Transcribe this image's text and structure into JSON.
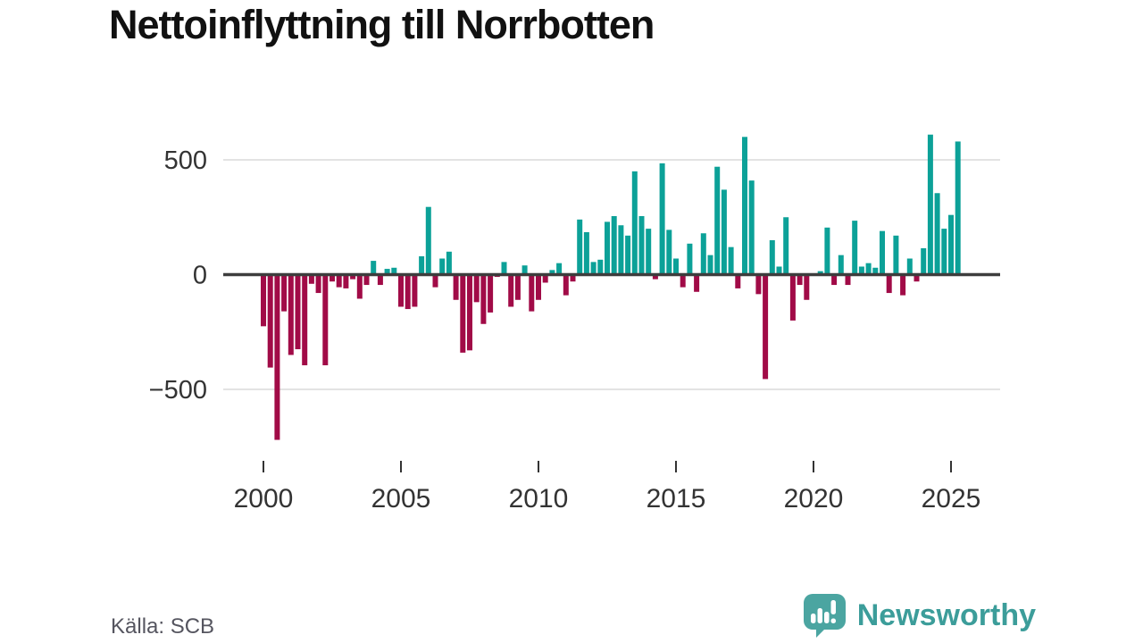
{
  "title": "Nettoinflyttning till Norrbotten",
  "source": "Källa: SCB",
  "brand": {
    "name": "Newsworthy",
    "icon": "bar-chart-speech-bubble-icon",
    "text_color": "#3c9d9a",
    "icon_color": "#4ba5a1"
  },
  "colors": {
    "positive": "#0ca198",
    "negative": "#a10b47",
    "zero_axis": "#3d3d3d",
    "gridline": "#e3e3e3",
    "tick_label": "#333333",
    "title": "#111111"
  },
  "chart_data": {
    "type": "bar",
    "title": "Nettoinflyttning till Norrbotten",
    "x_unit": "quarter",
    "start": "2000-Q1",
    "end": "2025-Q2",
    "grid": "horizontal",
    "legend": "none",
    "ylim": [
      -750,
      650
    ],
    "yticks": [
      500,
      0,
      -500
    ],
    "ytick_labels": [
      "500",
      "0",
      "−500"
    ],
    "xticks": [
      2000,
      2005,
      2010,
      2015,
      2020,
      2025
    ],
    "xtick_labels": [
      "2000",
      "2005",
      "2010",
      "2015",
      "2020",
      "2025"
    ],
    "categories": [
      "2000-Q1",
      "2000-Q2",
      "2000-Q3",
      "2000-Q4",
      "2001-Q1",
      "2001-Q2",
      "2001-Q3",
      "2001-Q4",
      "2002-Q1",
      "2002-Q2",
      "2002-Q3",
      "2002-Q4",
      "2003-Q1",
      "2003-Q2",
      "2003-Q3",
      "2003-Q4",
      "2004-Q1",
      "2004-Q2",
      "2004-Q3",
      "2004-Q4",
      "2005-Q1",
      "2005-Q2",
      "2005-Q3",
      "2005-Q4",
      "2006-Q1",
      "2006-Q2",
      "2006-Q3",
      "2006-Q4",
      "2007-Q1",
      "2007-Q2",
      "2007-Q3",
      "2007-Q4",
      "2008-Q1",
      "2008-Q2",
      "2008-Q3",
      "2008-Q4",
      "2009-Q1",
      "2009-Q2",
      "2009-Q3",
      "2009-Q4",
      "2010-Q1",
      "2010-Q2",
      "2010-Q3",
      "2010-Q4",
      "2011-Q1",
      "2011-Q2",
      "2011-Q3",
      "2011-Q4",
      "2012-Q1",
      "2012-Q2",
      "2012-Q3",
      "2012-Q4",
      "2013-Q1",
      "2013-Q2",
      "2013-Q3",
      "2013-Q4",
      "2014-Q1",
      "2014-Q2",
      "2014-Q3",
      "2014-Q4",
      "2015-Q1",
      "2015-Q2",
      "2015-Q3",
      "2015-Q4",
      "2016-Q1",
      "2016-Q2",
      "2016-Q3",
      "2016-Q4",
      "2017-Q1",
      "2017-Q2",
      "2017-Q3",
      "2017-Q4",
      "2018-Q1",
      "2018-Q2",
      "2018-Q3",
      "2018-Q4",
      "2019-Q1",
      "2019-Q2",
      "2019-Q3",
      "2019-Q4",
      "2020-Q1",
      "2020-Q2",
      "2020-Q3",
      "2020-Q4",
      "2021-Q1",
      "2021-Q2",
      "2021-Q3",
      "2021-Q4",
      "2022-Q1",
      "2022-Q2",
      "2022-Q3",
      "2022-Q4",
      "2023-Q1",
      "2023-Q2",
      "2023-Q3",
      "2023-Q4",
      "2024-Q1",
      "2024-Q2",
      "2024-Q3",
      "2024-Q4",
      "2025-Q1",
      "2025-Q2"
    ],
    "values": [
      -225,
      -405,
      -720,
      -160,
      -350,
      -325,
      -395,
      -40,
      -80,
      -395,
      -30,
      -55,
      -60,
      -20,
      -105,
      -45,
      60,
      -45,
      25,
      30,
      -140,
      -150,
      -140,
      80,
      295,
      -55,
      70,
      100,
      -110,
      -340,
      -330,
      -120,
      -215,
      -165,
      -10,
      55,
      -140,
      -110,
      40,
      -160,
      -110,
      -35,
      20,
      50,
      -90,
      -30,
      240,
      185,
      55,
      65,
      230,
      255,
      215,
      170,
      450,
      255,
      200,
      -20,
      485,
      195,
      70,
      -55,
      135,
      -75,
      180,
      85,
      470,
      370,
      120,
      -60,
      600,
      410,
      -85,
      -455,
      150,
      35,
      250,
      -200,
      -45,
      -110,
      0,
      15,
      205,
      -45,
      85,
      -45,
      235,
      35,
      50,
      30,
      190,
      -80,
      170,
      -90,
      70,
      -30,
      115,
      610,
      355,
      200,
      260,
      580
    ],
    "positive_color": "#0ca198",
    "negative_color": "#a10b47"
  }
}
